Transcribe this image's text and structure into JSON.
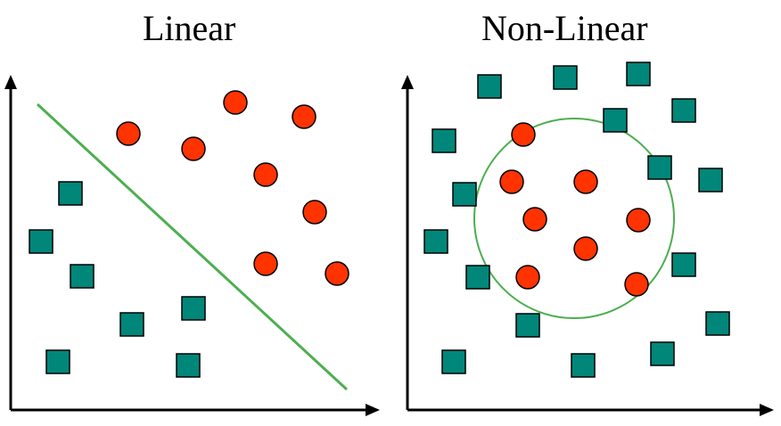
{
  "panels": {
    "linear": {
      "title": "Linear",
      "separator": "line",
      "squares": [
        [
          79,
          217
        ],
        [
          46,
          271
        ],
        [
          92,
          310
        ],
        [
          148,
          364
        ],
        [
          217,
          346
        ],
        [
          65,
          406
        ],
        [
          211,
          410
        ]
      ],
      "circles": [
        [
          144,
          150
        ],
        [
          217,
          167
        ],
        [
          264,
          115
        ],
        [
          341,
          131
        ],
        [
          298,
          196
        ],
        [
          353,
          238
        ],
        [
          298,
          296
        ],
        [
          378,
          307
        ]
      ]
    },
    "nonlinear": {
      "title": "Non-Linear",
      "separator": "circle",
      "squares": [
        [
          549,
          97
        ],
        [
          634,
          87
        ],
        [
          716,
          83
        ],
        [
          690,
          135
        ],
        [
          767,
          124
        ],
        [
          498,
          158
        ],
        [
          740,
          188
        ],
        [
          797,
          202
        ],
        [
          521,
          218
        ],
        [
          489,
          271
        ],
        [
          536,
          311
        ],
        [
          767,
          297
        ],
        [
          592,
          365
        ],
        [
          805,
          363
        ],
        [
          509,
          406
        ],
        [
          654,
          410
        ],
        [
          743,
          397
        ]
      ],
      "circles": [
        [
          587,
          151
        ],
        [
          574,
          204
        ],
        [
          657,
          204
        ],
        [
          600,
          246
        ],
        [
          716,
          247
        ],
        [
          657,
          279
        ],
        [
          592,
          311
        ],
        [
          714,
          319
        ]
      ]
    }
  },
  "colors": {
    "square_fill": "#00877A",
    "circle_fill": "#FF3300",
    "separator": "#4CAF50",
    "axis": "#000000"
  }
}
